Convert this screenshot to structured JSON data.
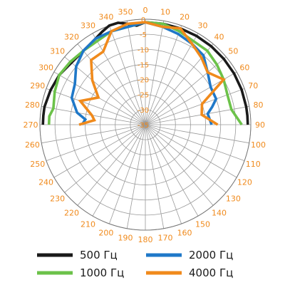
{
  "chart_data": {
    "type": "polar-line",
    "angle_unit": "deg",
    "angle_direction": "clockwise",
    "angle_zero": "top",
    "angular_ticks": [
      "0",
      "10",
      "20",
      "30",
      "40",
      "50",
      "60",
      "70",
      "80",
      "90",
      "100",
      "110",
      "120",
      "130",
      "140",
      "150",
      "160",
      "170",
      "180",
      "190",
      "200",
      "210",
      "220",
      "230",
      "240",
      "250",
      "260",
      "270",
      "280",
      "290",
      "300",
      "310",
      "320",
      "330",
      "340",
      "350"
    ],
    "radial_ticks": [
      "0",
      "-5",
      "-10",
      "-15",
      "-20",
      "-25",
      "-30",
      "-35"
    ],
    "radial_range": [
      -35,
      0
    ],
    "series": [
      {
        "name": "500 Гц",
        "color": "#1a1a1a",
        "angles": [
          270,
          275,
          280,
          290,
          300,
          310,
          320,
          330,
          335,
          340,
          345,
          350,
          355,
          0,
          10,
          20,
          30,
          40,
          50,
          60,
          70,
          80,
          85,
          90
        ],
        "values": [
          -1,
          -1,
          -1,
          -1.5,
          -2,
          -3,
          -3,
          -2,
          -1,
          0,
          0,
          -1,
          -2,
          -1,
          -1,
          -1,
          -1,
          -1,
          -1,
          -1,
          -1,
          -1,
          -1,
          -1
        ]
      },
      {
        "name": "1000 Гц",
        "color": "#6cc24a",
        "angles": [
          270,
          275,
          280,
          290,
          300,
          310,
          320,
          330,
          340,
          350,
          0,
          10,
          20,
          30,
          40,
          50,
          60,
          70,
          80,
          90
        ],
        "values": [
          -3,
          -3,
          -4,
          -3,
          -2,
          -2.5,
          -3,
          -3,
          -2,
          -2,
          -1,
          -1,
          -2,
          -3,
          -3,
          -4,
          -5,
          -6,
          -6,
          -3
        ]
      },
      {
        "name": "2000 Гц",
        "color": "#1f78c8",
        "angles": [
          270,
          275,
          280,
          290,
          300,
          310,
          320,
          330,
          340,
          350,
          0,
          10,
          20,
          30,
          40,
          50,
          60,
          70,
          75,
          80,
          90
        ],
        "values": [
          -14,
          -15,
          -12,
          -9,
          -8,
          -5,
          -3,
          -2,
          -2,
          -2,
          -1,
          -2,
          -3,
          -4,
          -5,
          -8,
          -10,
          -10,
          -12,
          -14,
          -13
        ]
      },
      {
        "name": "4000 Гц",
        "color": "#f08a1c",
        "angles": [
          270,
          275,
          280,
          290,
          300,
          310,
          320,
          330,
          340,
          350,
          0,
          10,
          20,
          30,
          40,
          50,
          60,
          70,
          80,
          90
        ],
        "values": [
          -13,
          -18,
          -17,
          -12,
          -17,
          -12,
          -7,
          -7,
          -2,
          -1,
          -1,
          -2,
          -1,
          -4,
          -6,
          -8,
          -5,
          -15,
          -16,
          -11
        ]
      }
    ],
    "legend": [
      "500 Гц",
      "2000 Гц",
      "1000 Гц",
      "4000 Гц"
    ],
    "legend_position": "bottom"
  }
}
